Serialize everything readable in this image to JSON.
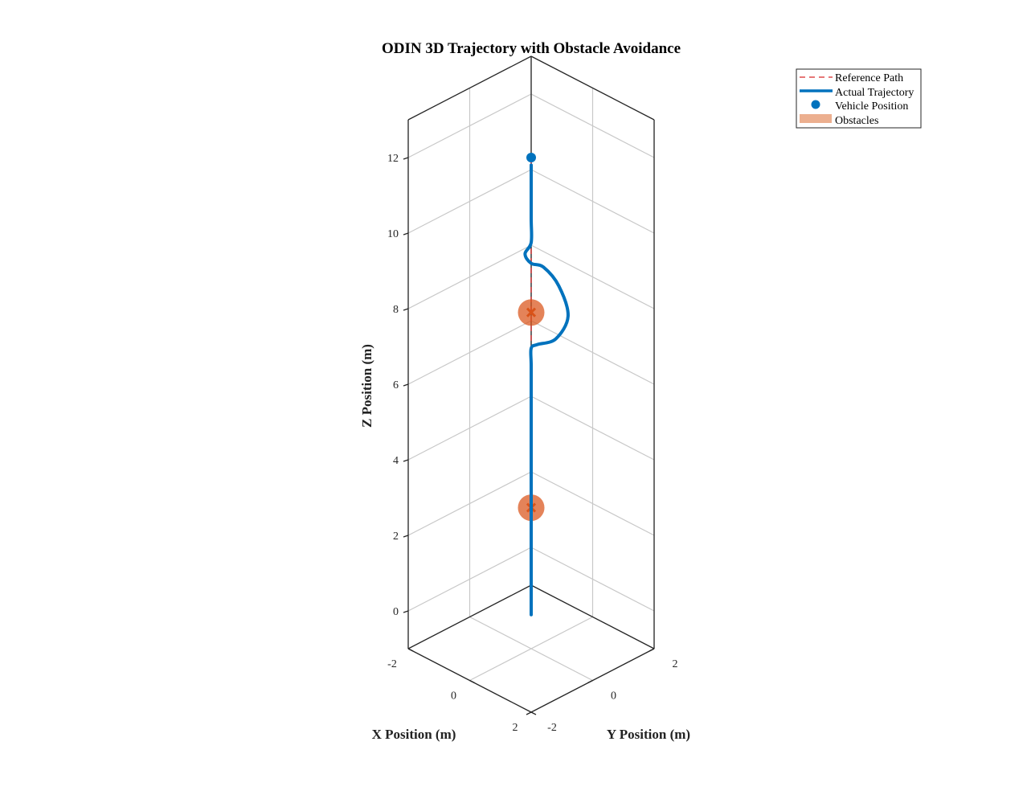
{
  "chart_data": {
    "type": "line3d",
    "title": "ODIN 3D Trajectory with Obstacle Avoidance",
    "xlabel": "X Position (m)",
    "ylabel": "Y Position (m)",
    "zlabel": "Z Position (m)",
    "xlim": [
      -2,
      2
    ],
    "ylim": [
      -2,
      2
    ],
    "zlim": [
      -1,
      13
    ],
    "x_ticks": [
      -2,
      0,
      2
    ],
    "y_ticks": [
      -2,
      0,
      2
    ],
    "z_ticks": [
      0,
      2,
      4,
      6,
      8,
      10,
      12
    ],
    "grid": true,
    "legend_location": "northeast-outside",
    "legend": [
      "Reference Path",
      "Actual Trajectory",
      "Vehicle Position",
      "Obstacles"
    ],
    "colors": {
      "reference": "#d62728",
      "trajectory": "#0072bd",
      "vehicle": "#0072bd",
      "obstacle": "#d95319",
      "obstacle_legend": "#ecaf8f"
    },
    "reference_path": {
      "name": "Reference Path",
      "points": [
        [
          0,
          0,
          0
        ],
        [
          0,
          0,
          12
        ]
      ]
    },
    "actual_trajectory": {
      "name": "Actual Trajectory",
      "points": [
        [
          0,
          0,
          -0.1
        ],
        [
          0,
          0,
          1.0
        ],
        [
          0,
          0,
          1.8
        ],
        [
          0.05,
          -0.05,
          2.2
        ],
        [
          0.3,
          -0.3,
          2.1
        ],
        [
          0.2,
          -0.2,
          2.25
        ],
        [
          0,
          0,
          2.3
        ],
        [
          -0.2,
          0.2,
          2.7
        ],
        [
          -0.42,
          0.42,
          3.4
        ],
        [
          -0.5,
          0.5,
          4.2
        ],
        [
          -0.35,
          0.35,
          4.65
        ],
        [
          0,
          0,
          4.7
        ],
        [
          0.1,
          -0.1,
          4.95
        ],
        [
          0.02,
          -0.02,
          5.2
        ],
        [
          0,
          0,
          5.6
        ],
        [
          0,
          0,
          6.5
        ],
        [
          0,
          0,
          6.95
        ],
        [
          0.1,
          0.1,
          7.05
        ],
        [
          0.4,
          0.4,
          7.2
        ],
        [
          0.6,
          0.6,
          7.8
        ],
        [
          0.45,
          0.45,
          8.6
        ],
        [
          0.2,
          0.2,
          9.1
        ],
        [
          0,
          0,
          9.2
        ],
        [
          -0.1,
          -0.1,
          9.45
        ],
        [
          0,
          0,
          9.75
        ],
        [
          0,
          0,
          10.4
        ],
        [
          0,
          0,
          11.5
        ],
        [
          0,
          0,
          11.8
        ]
      ]
    },
    "vehicle_position": {
      "name": "Vehicle Position",
      "point": [
        0,
        0,
        12
      ]
    },
    "obstacles": [
      {
        "center": [
          0.2,
          -0.2,
          2.9
        ],
        "radius": 0.3
      },
      {
        "center": [
          0,
          0,
          7.9
        ],
        "radius": 0.3
      }
    ]
  }
}
